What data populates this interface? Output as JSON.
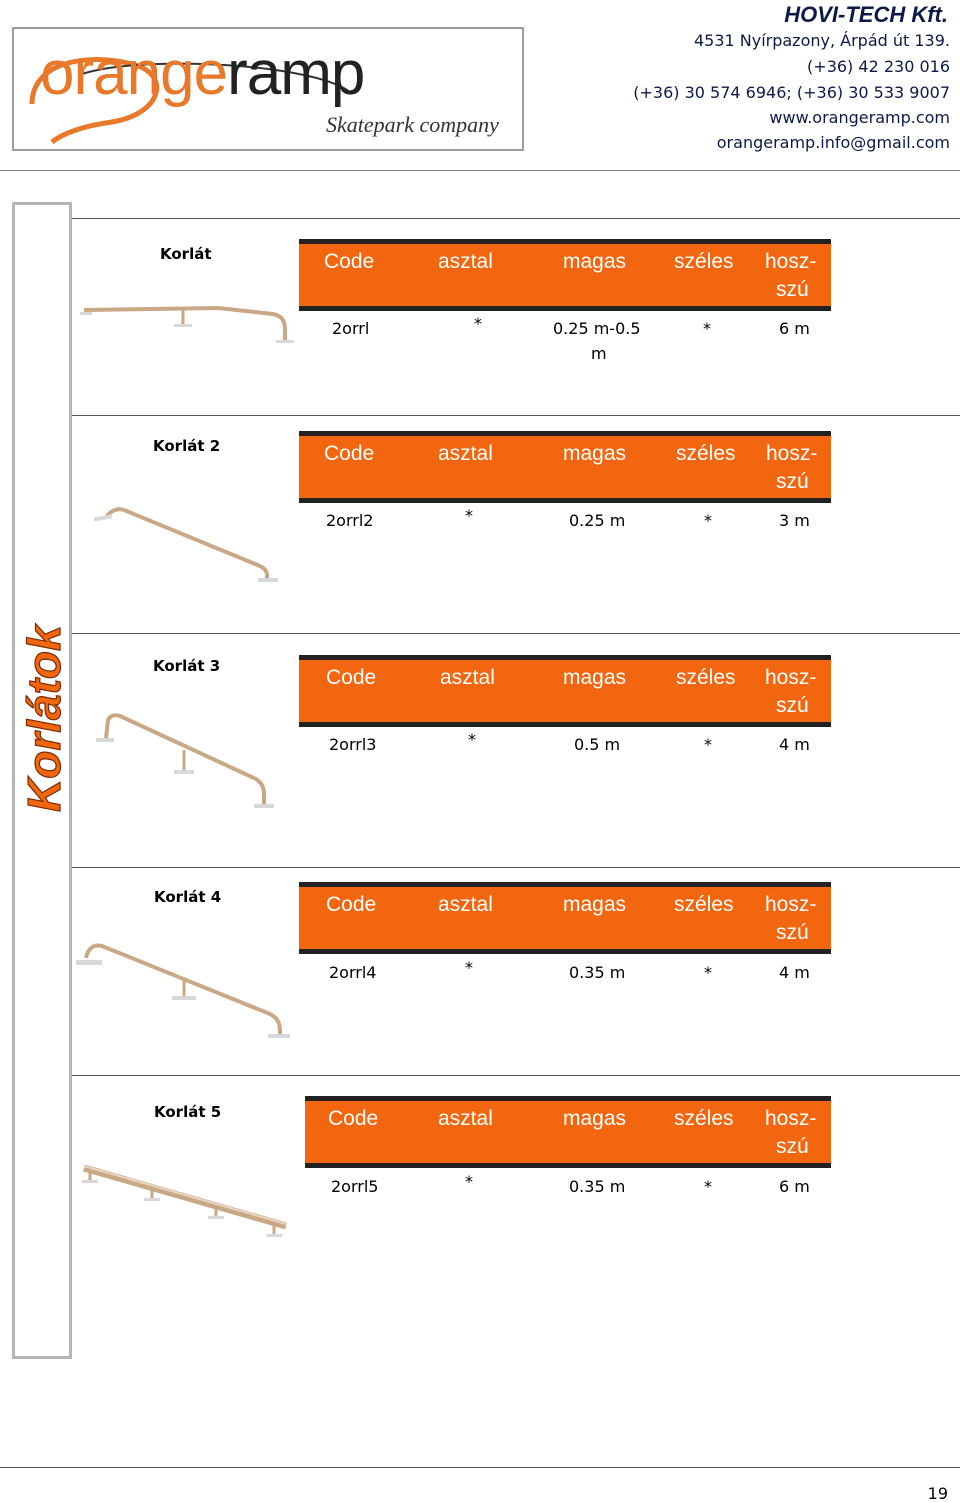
{
  "header": {
    "logo": {
      "part1": "orange",
      "part2": "ramp",
      "tagline": "Skatepark company"
    },
    "company": "HOVI-TECH Kft.",
    "address": "4531 Nyírpazony, Árpád út 139.",
    "phone1": "(+36) 42 230 016",
    "phone2": "(+36) 30 574 6946; (+36) 30 533 9007",
    "website": "www.orangeramp.com",
    "email": "orangeramp.info@gmail.com"
  },
  "side_title": "Korlátok",
  "columns": {
    "code": "Code",
    "asztal": "asztal",
    "magas": "magas",
    "szeles": "széles",
    "hossz1": "hosz-",
    "hossz2": "szú"
  },
  "items": [
    {
      "name": "Korlát",
      "code": "2orrl",
      "asztal": "*",
      "magas": "0.25 m-0.5",
      "magas2": "m",
      "szeles": "*",
      "hosszu": "6 m"
    },
    {
      "name": "Korlát 2",
      "code": "2orrl2",
      "asztal": "*",
      "magas": "0.25 m",
      "szeles": "*",
      "hosszu": "3 m"
    },
    {
      "name": "Korlát 3",
      "code": "2orrl3",
      "asztal": "*",
      "magas": "0.5 m",
      "szeles": "*",
      "hosszu": "4 m"
    },
    {
      "name": "Korlát 4",
      "code": "2orrl4",
      "asztal": "*",
      "magas": "0.35 m",
      "szeles": "*",
      "hosszu": "4 m"
    },
    {
      "name": "Korlát 5",
      "code": "2orrl5",
      "asztal": "*",
      "magas": "0.35 m",
      "szeles": "*",
      "hosszu": "6 m"
    }
  ],
  "page_number": "19",
  "colors": {
    "orange": "#f2660f",
    "navy": "#0c1a4a",
    "rail": "#c9a886"
  }
}
